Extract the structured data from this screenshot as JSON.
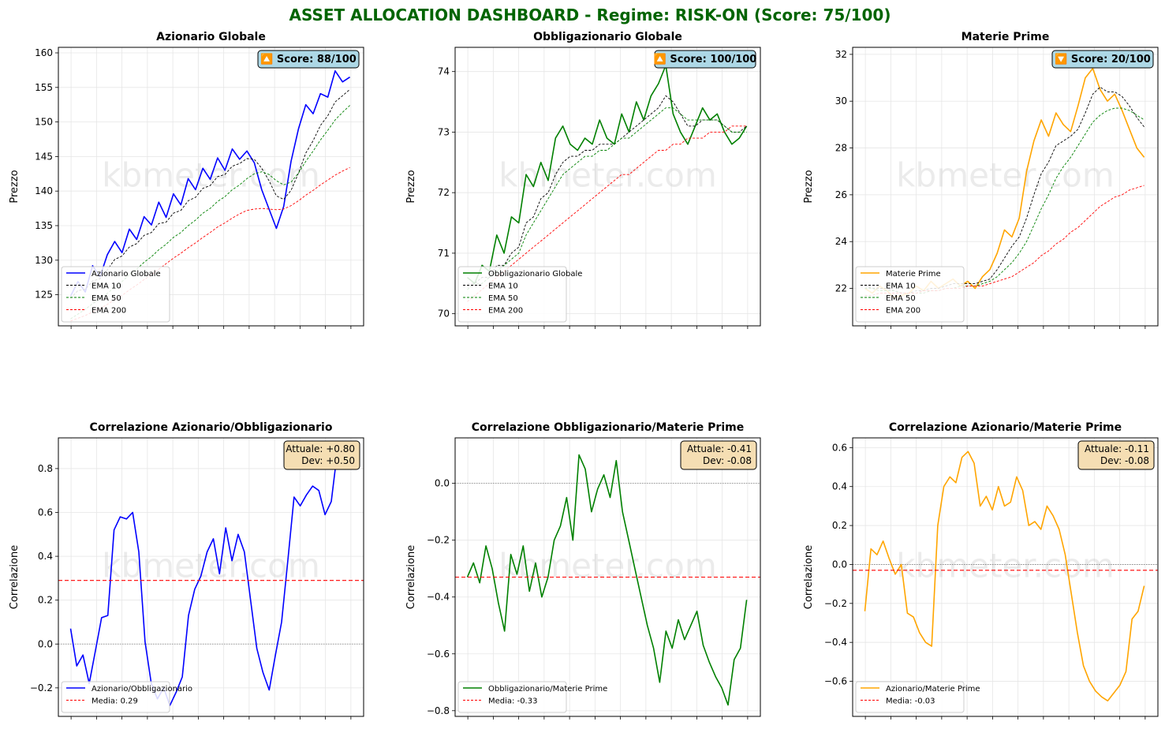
{
  "suptitle": "ASSET ALLOCATION DASHBOARD - Regime: RISK-ON  (Score: 75/100)",
  "watermark": "kbmeter.com",
  "colors": {
    "title": "#006400",
    "equity": "#0000ff",
    "bond": "#008000",
    "commodity": "#ffa500",
    "ema10": "#000000",
    "ema50": "#008000",
    "ema200": "#ff0000",
    "score_box": "#add8e6",
    "stat_box": "#f5deb3"
  },
  "chart_data": [
    {
      "type": "line",
      "title": "Azionario Globale",
      "ylabel": "Prezzo",
      "ylim": [
        120.5,
        160.8
      ],
      "yticks": [
        125,
        130,
        135,
        140,
        145,
        150,
        155,
        160
      ],
      "score": "🔼 Score: 88/100",
      "legend_position": "lower-left",
      "series": [
        {
          "name": "Azionario Globale",
          "role": "price",
          "color": "#0000ff",
          "values": [
            124.8,
            126.9,
            125.4,
            129.2,
            127.6,
            130.8,
            132.7,
            131.1,
            134.5,
            133.0,
            136.3,
            135.1,
            138.4,
            136.2,
            139.6,
            138.0,
            141.8,
            140.2,
            143.3,
            141.7,
            144.8,
            143.0,
            146.1,
            144.6,
            145.8,
            144.1,
            140.2,
            137.4,
            134.6,
            137.8,
            144.3,
            149.0,
            152.5,
            151.2,
            154.1,
            153.6,
            157.4,
            155.8,
            156.5
          ]
        },
        {
          "name": "EMA 10",
          "role": "ema10",
          "color": "#000000",
          "values": [
            124.5,
            125.6,
            125.8,
            127.0,
            127.3,
            128.6,
            130.1,
            130.6,
            131.9,
            132.4,
            133.6,
            134.0,
            135.3,
            135.5,
            136.8,
            137.2,
            138.6,
            139.1,
            140.4,
            140.8,
            142.1,
            142.4,
            143.6,
            144.0,
            144.7,
            144.6,
            143.3,
            141.5,
            139.3,
            138.8,
            140.1,
            142.6,
            145.5,
            147.3,
            149.5,
            150.9,
            152.9,
            153.8,
            154.7
          ]
        },
        {
          "name": "EMA 50",
          "role": "ema50",
          "color": "#008000",
          "values": [
            121.5,
            122.2,
            122.9,
            123.7,
            124.4,
            125.2,
            126.1,
            126.9,
            127.9,
            128.7,
            129.7,
            130.5,
            131.5,
            132.3,
            133.3,
            134.0,
            135.0,
            135.8,
            136.8,
            137.5,
            138.5,
            139.2,
            140.2,
            140.9,
            141.8,
            142.5,
            142.8,
            142.4,
            141.5,
            140.9,
            141.3,
            142.6,
            144.3,
            145.8,
            147.4,
            148.8,
            150.3,
            151.4,
            152.4
          ]
        },
        {
          "name": "EMA 200",
          "role": "ema200",
          "color": "#ff0000",
          "values": [
            121.2,
            121.6,
            122.0,
            122.5,
            123.0,
            123.6,
            124.3,
            124.9,
            125.7,
            126.4,
            127.2,
            127.9,
            128.7,
            129.5,
            130.3,
            131.0,
            131.8,
            132.5,
            133.3,
            134.0,
            134.8,
            135.4,
            136.1,
            136.7,
            137.2,
            137.4,
            137.5,
            137.4,
            137.3,
            137.4,
            137.9,
            138.6,
            139.4,
            140.1,
            140.9,
            141.6,
            142.3,
            142.9,
            143.4
          ]
        }
      ]
    },
    {
      "type": "line",
      "title": "Obbligazionario Globale",
      "ylabel": "Prezzo",
      "ylim": [
        69.8,
        74.4
      ],
      "yticks": [
        70,
        71,
        72,
        73,
        74
      ],
      "score": "🔼 Score: 100/100",
      "legend_position": "lower-left",
      "series": [
        {
          "name": "Obbligazionario Globale",
          "role": "price",
          "color": "#008000",
          "values": [
            70.6,
            70.5,
            70.8,
            70.7,
            71.3,
            71.0,
            71.6,
            71.5,
            72.3,
            72.1,
            72.5,
            72.2,
            72.9,
            73.1,
            72.8,
            72.7,
            72.9,
            72.8,
            73.2,
            72.9,
            72.8,
            73.3,
            73.0,
            73.5,
            73.2,
            73.6,
            73.8,
            74.1,
            73.3,
            73.0,
            72.8,
            73.1,
            73.4,
            73.2,
            73.3,
            73.0,
            72.8,
            72.9,
            73.1
          ]
        },
        {
          "name": "EMA 10",
          "role": "ema10",
          "color": "#000000",
          "values": [
            70.5,
            70.5,
            70.6,
            70.6,
            70.8,
            70.8,
            71.0,
            71.1,
            71.5,
            71.6,
            71.9,
            72.0,
            72.3,
            72.5,
            72.6,
            72.6,
            72.7,
            72.7,
            72.8,
            72.8,
            72.8,
            72.9,
            73.0,
            73.1,
            73.2,
            73.3,
            73.4,
            73.6,
            73.5,
            73.3,
            73.1,
            73.1,
            73.2,
            73.2,
            73.2,
            73.1,
            73.0,
            73.0,
            73.1
          ]
        },
        {
          "name": "EMA 50",
          "role": "ema50",
          "color": "#008000",
          "values": [
            70.4,
            70.5,
            70.5,
            70.6,
            70.7,
            70.8,
            70.9,
            71.0,
            71.3,
            71.5,
            71.7,
            71.9,
            72.1,
            72.3,
            72.4,
            72.5,
            72.6,
            72.6,
            72.7,
            72.7,
            72.8,
            72.9,
            72.9,
            73.0,
            73.1,
            73.2,
            73.3,
            73.4,
            73.4,
            73.3,
            73.2,
            73.2,
            73.2,
            73.2,
            73.2,
            73.1,
            73.0,
            73.0,
            73.0
          ]
        },
        {
          "name": "EMA 200",
          "role": "ema200",
          "color": "#ff0000",
          "values": [
            70.2,
            70.3,
            70.4,
            70.5,
            70.6,
            70.7,
            70.8,
            70.9,
            71.0,
            71.1,
            71.2,
            71.3,
            71.4,
            71.5,
            71.6,
            71.7,
            71.8,
            71.9,
            72.0,
            72.1,
            72.2,
            72.3,
            72.3,
            72.4,
            72.5,
            72.6,
            72.7,
            72.7,
            72.8,
            72.8,
            72.9,
            72.9,
            72.9,
            73.0,
            73.0,
            73.0,
            73.1,
            73.1,
            73.1
          ]
        }
      ]
    },
    {
      "type": "line",
      "title": "Materie Prime",
      "ylabel": "Prezzo",
      "ylim": [
        20.4,
        32.3
      ],
      "yticks": [
        22,
        24,
        26,
        28,
        30,
        32
      ],
      "score": "🔽 Score: 20/100",
      "legend_position": "lower-left",
      "series": [
        {
          "name": "Materie Prime",
          "role": "price",
          "color": "#ffa500",
          "values": [
            22.0,
            21.8,
            22.1,
            21.9,
            21.6,
            21.7,
            21.8,
            22.1,
            21.9,
            22.3,
            22.0,
            22.2,
            22.4,
            22.1,
            22.3,
            22.0,
            22.5,
            22.8,
            23.5,
            24.5,
            24.2,
            25.0,
            27.0,
            28.3,
            29.2,
            28.5,
            29.5,
            29.0,
            28.7,
            29.8,
            31.0,
            31.4,
            30.5,
            30.0,
            30.3,
            29.6,
            28.8,
            28.0,
            27.6
          ]
        },
        {
          "name": "EMA 10",
          "role": "ema10",
          "color": "#000000",
          "values": [
            22.1,
            22.0,
            22.0,
            22.0,
            21.9,
            21.8,
            21.8,
            21.9,
            21.9,
            22.0,
            22.0,
            22.1,
            22.2,
            22.2,
            22.2,
            22.2,
            22.3,
            22.4,
            22.8,
            23.3,
            23.8,
            24.2,
            25.0,
            26.0,
            26.9,
            27.4,
            28.1,
            28.3,
            28.5,
            28.8,
            29.5,
            30.3,
            30.6,
            30.4,
            30.4,
            30.2,
            29.8,
            29.3,
            28.9
          ]
        },
        {
          "name": "EMA 50",
          "role": "ema50",
          "color": "#008000",
          "values": [
            22.0,
            22.0,
            21.9,
            21.9,
            21.9,
            21.8,
            21.8,
            21.8,
            21.8,
            21.9,
            21.9,
            22.0,
            22.0,
            22.1,
            22.1,
            22.1,
            22.2,
            22.3,
            22.5,
            22.8,
            23.1,
            23.5,
            24.0,
            24.7,
            25.4,
            26.0,
            26.7,
            27.2,
            27.6,
            28.1,
            28.6,
            29.1,
            29.4,
            29.6,
            29.7,
            29.7,
            29.6,
            29.4,
            29.2
          ]
        },
        {
          "name": "EMA 200",
          "role": "ema200",
          "color": "#ff0000",
          "values": [
            21.7,
            21.7,
            21.8,
            21.8,
            21.8,
            21.8,
            21.8,
            21.8,
            21.9,
            21.9,
            21.9,
            22.0,
            22.0,
            22.0,
            22.1,
            22.1,
            22.1,
            22.2,
            22.3,
            22.4,
            22.5,
            22.7,
            22.9,
            23.1,
            23.4,
            23.6,
            23.9,
            24.1,
            24.4,
            24.6,
            24.9,
            25.2,
            25.5,
            25.7,
            25.9,
            26.0,
            26.2,
            26.3,
            26.4
          ]
        }
      ]
    },
    {
      "type": "line",
      "title": "Correlazione Azionario/Obbligazionario",
      "ylabel": "Correlazione",
      "ylim": [
        -0.33,
        0.94
      ],
      "yticks": [
        -0.2,
        0.0,
        0.2,
        0.4,
        0.6,
        0.8
      ],
      "stats": [
        "Attuale: +0.80",
        "Dev: +0.50"
      ],
      "mean": 0.29,
      "legend_position": "lower-left",
      "series": [
        {
          "name": "Azionario/Obbligazionario",
          "role": "corr",
          "color": "#0000ff",
          "values": [
            0.07,
            -0.1,
            -0.05,
            -0.18,
            -0.03,
            0.12,
            0.13,
            0.52,
            0.58,
            0.57,
            0.6,
            0.42,
            0.01,
            -0.18,
            -0.25,
            -0.2,
            -0.28,
            -0.22,
            -0.15,
            0.13,
            0.25,
            0.31,
            0.42,
            0.48,
            0.32,
            0.53,
            0.38,
            0.5,
            0.42,
            0.2,
            -0.02,
            -0.13,
            -0.21,
            -0.05,
            0.1,
            0.38,
            0.67,
            0.63,
            0.68,
            0.72,
            0.7,
            0.59,
            0.65,
            0.88,
            0.83,
            0.8
          ]
        },
        {
          "name": "Media: 0.29",
          "role": "mean",
          "color": "#ff0000",
          "values": [
            0.29
          ]
        }
      ]
    },
    {
      "type": "line",
      "title": "Correlazione Obbligazionario/Materie Prime",
      "ylabel": "Correlazione",
      "ylim": [
        -0.82,
        0.16
      ],
      "yticks": [
        -0.8,
        -0.6,
        -0.4,
        -0.2,
        0.0
      ],
      "stats": [
        "Attuale: -0.41",
        "Dev: -0.08"
      ],
      "mean": -0.33,
      "legend_position": "lower-left",
      "series": [
        {
          "name": "Obbligazionario/Materie Prime",
          "role": "corr",
          "color": "#008000",
          "values": [
            -0.33,
            -0.28,
            -0.35,
            -0.22,
            -0.3,
            -0.42,
            -0.52,
            -0.25,
            -0.32,
            -0.22,
            -0.38,
            -0.28,
            -0.4,
            -0.33,
            -0.2,
            -0.15,
            -0.05,
            -0.2,
            0.1,
            0.05,
            -0.1,
            -0.02,
            0.03,
            -0.05,
            0.08,
            -0.1,
            -0.2,
            -0.3,
            -0.4,
            -0.5,
            -0.58,
            -0.7,
            -0.52,
            -0.58,
            -0.48,
            -0.55,
            -0.5,
            -0.45,
            -0.57,
            -0.63,
            -0.68,
            -0.72,
            -0.78,
            -0.62,
            -0.58,
            -0.41
          ]
        },
        {
          "name": "Media: -0.33",
          "role": "mean",
          "color": "#ff0000",
          "values": [
            -0.33
          ]
        }
      ]
    },
    {
      "type": "line",
      "title": "Correlazione Azionario/Materie Prime",
      "ylabel": "Correlazione",
      "ylim": [
        -0.78,
        0.65
      ],
      "yticks": [
        -0.6,
        -0.4,
        -0.2,
        0.0,
        0.2,
        0.4,
        0.6
      ],
      "stats": [
        "Attuale: -0.11",
        "Dev: -0.08"
      ],
      "mean": -0.03,
      "legend_position": "lower-left",
      "series": [
        {
          "name": "Azionario/Materie Prime",
          "role": "corr",
          "color": "#ffa500",
          "values": [
            -0.24,
            0.08,
            0.05,
            0.12,
            0.03,
            -0.05,
            0.0,
            -0.25,
            -0.27,
            -0.35,
            -0.4,
            -0.42,
            0.2,
            0.4,
            0.45,
            0.42,
            0.55,
            0.58,
            0.52,
            0.3,
            0.35,
            0.28,
            0.4,
            0.3,
            0.32,
            0.45,
            0.38,
            0.2,
            0.22,
            0.18,
            0.3,
            0.25,
            0.18,
            0.05,
            -0.15,
            -0.35,
            -0.52,
            -0.6,
            -0.65,
            -0.68,
            -0.7,
            -0.66,
            -0.62,
            -0.55,
            -0.28,
            -0.24,
            -0.11
          ]
        },
        {
          "name": "Media: -0.03",
          "role": "mean",
          "color": "#ff0000",
          "values": [
            -0.03
          ]
        }
      ]
    }
  ]
}
